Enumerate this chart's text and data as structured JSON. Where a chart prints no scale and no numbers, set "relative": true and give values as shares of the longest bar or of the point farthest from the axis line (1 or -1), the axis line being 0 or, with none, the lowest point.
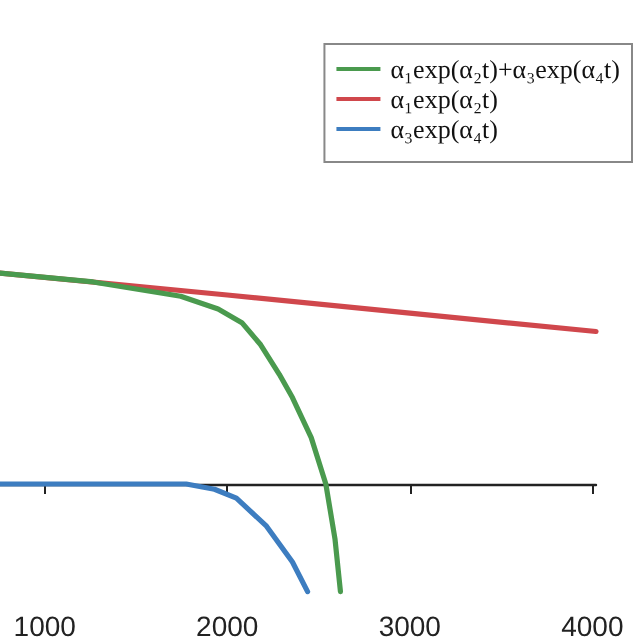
{
  "chart_data": {
    "type": "line",
    "relative": true,
    "xlim": [
      755,
      4020
    ],
    "xticks": [
      1000,
      2000,
      3000,
      4000
    ],
    "grid": false,
    "legend": "top right",
    "marker": "none",
    "line_style": "solid",
    "series": [
      {
        "name": "α₁exp(α₂t)+α₃exp(α₄t)",
        "color": "#4a9a4e",
        "x": [
          755,
          1265,
          1745,
          1950,
          2080,
          2183,
          2285,
          2357,
          2460,
          2540,
          2590,
          2620
        ],
        "values": [
          1.0,
          0.958,
          0.89,
          0.83,
          0.765,
          0.66,
          0.52,
          0.41,
          0.22,
          0,
          -0.26,
          -0.51
        ]
      },
      {
        "name": "α₁exp(α₂t)",
        "color": "#d0474c",
        "x": [
          755,
          2000,
          3000,
          4020
        ],
        "values": [
          1.0,
          0.896,
          0.81,
          0.723
        ]
      },
      {
        "name": "α₃exp(α₄t)",
        "color": "#3d7dc0",
        "x": [
          755,
          1500,
          1775,
          1930,
          2050,
          2215,
          2357,
          2440
        ],
        "values": [
          0,
          0,
          0,
          -0.025,
          -0.067,
          -0.2,
          -0.37,
          -0.51
        ]
      }
    ]
  }
}
